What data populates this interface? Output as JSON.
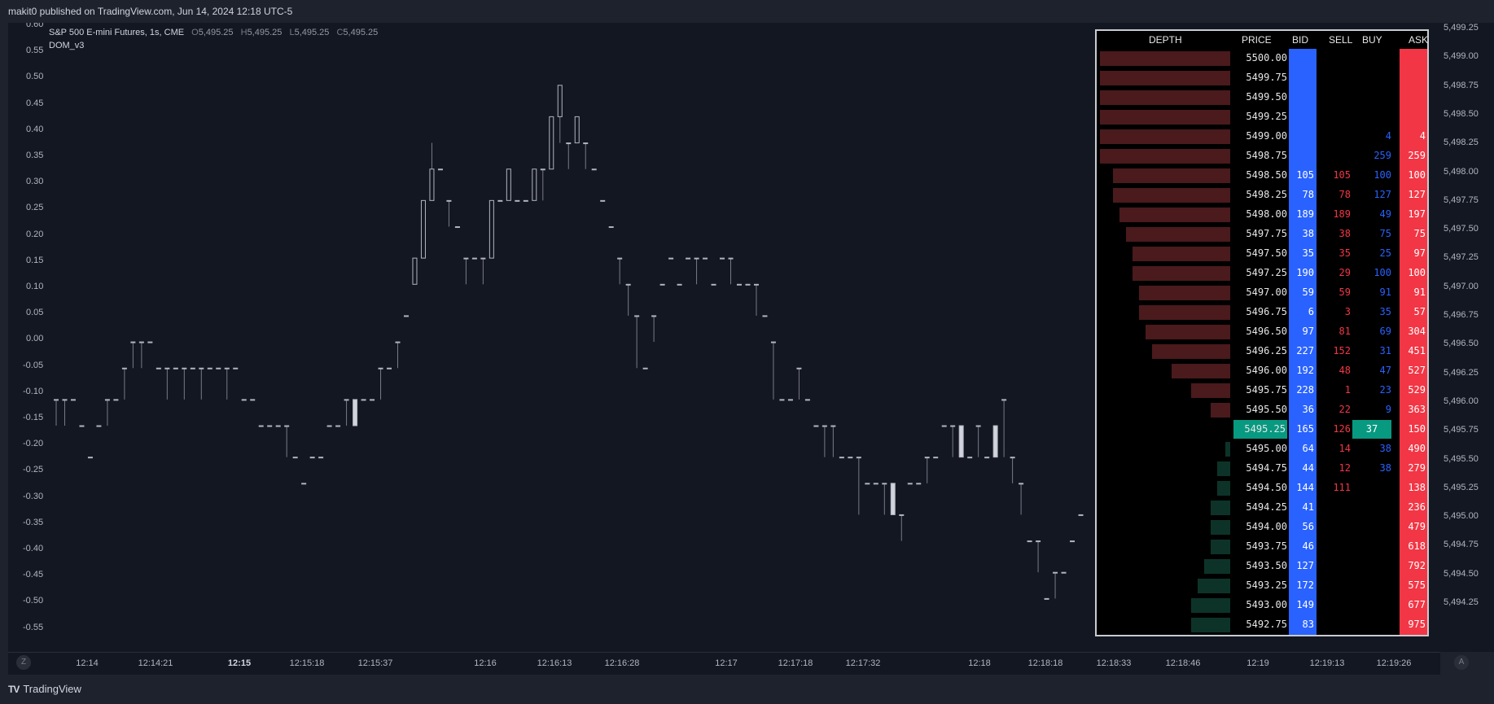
{
  "publish": {
    "text": "makit0 published on TradingView.com, Jun 14, 2024 12:18 UTC-5"
  },
  "legend": {
    "symbol": "S&P 500 E-mini Futures, 1s, CME",
    "o_label": "O",
    "o": "5,495.25",
    "h_label": "H",
    "h": "5,495.25",
    "l_label": "L",
    "l": "5,495.25",
    "c_label": "C",
    "c": "5,495.25",
    "indicator": "DOM_v3"
  },
  "left_axis": [
    "0.60",
    "0.55",
    "0.50",
    "0.45",
    "0.40",
    "0.35",
    "0.30",
    "0.25",
    "0.20",
    "0.15",
    "0.10",
    "0.05",
    "0.00",
    "-0.05",
    "-0.10",
    "-0.15",
    "-0.20",
    "-0.25",
    "-0.30",
    "-0.35",
    "-0.40",
    "-0.45",
    "-0.50",
    "-0.55"
  ],
  "right_axis": [
    "5,499.25",
    "5,499.00",
    "5,498.75",
    "5,498.50",
    "5,498.25",
    "5,498.00",
    "5,497.75",
    "5,497.50",
    "5,497.25",
    "5,497.00",
    "5,496.75",
    "5,496.50",
    "5,496.25",
    "5,496.00",
    "5,495.75",
    "5,495.50",
    "5,495.25",
    "5,495.00",
    "5,494.75",
    "5,494.50",
    "5,494.25"
  ],
  "time_axis": [
    {
      "label": "12:14",
      "bold": false
    },
    {
      "label": "12:14:21",
      "bold": false
    },
    {
      "label": "12:15",
      "bold": true
    },
    {
      "label": "12:15:18",
      "bold": false
    },
    {
      "label": "12:15:37",
      "bold": false
    },
    {
      "label": "12:16",
      "bold": false
    },
    {
      "label": "12:16:13",
      "bold": false
    },
    {
      "label": "12:16:28",
      "bold": false
    },
    {
      "label": "12:17",
      "bold": false
    },
    {
      "label": "12:17:18",
      "bold": false
    },
    {
      "label": "12:17:32",
      "bold": false
    },
    {
      "label": "12:18",
      "bold": false
    },
    {
      "label": "12:18:18",
      "bold": false
    },
    {
      "label": "12:18:33",
      "bold": false
    },
    {
      "label": "12:18:46",
      "bold": false
    },
    {
      "label": "12:19",
      "bold": false
    },
    {
      "label": "12:19:13",
      "bold": false
    },
    {
      "label": "12:19:26",
      "bold": false
    }
  ],
  "buttons": {
    "z": "Z",
    "a": "A"
  },
  "brand": {
    "logo_mark": "TV",
    "name": "TradingView"
  },
  "dom": {
    "headers": {
      "depth": "DEPTH",
      "price": "PRICE",
      "bid": "BID",
      "sell": "SELL",
      "buy": "BUY",
      "ask": "ASK"
    },
    "colors": {
      "bid": "#2962ff",
      "ask": "#f23645",
      "current": "#089981",
      "depth_ask": "#4a1a1c",
      "depth_bid": "#0d3329"
    },
    "rows": [
      {
        "price": "5500.00",
        "bid": "",
        "sell": "",
        "buy": "",
        "ask": "",
        "depth": 1.0,
        "side": "ask"
      },
      {
        "price": "5499.75",
        "bid": "",
        "sell": "",
        "buy": "",
        "ask": "",
        "depth": 1.0,
        "side": "ask"
      },
      {
        "price": "5499.50",
        "bid": "",
        "sell": "",
        "buy": "",
        "ask": "",
        "depth": 1.0,
        "side": "ask"
      },
      {
        "price": "5499.25",
        "bid": "",
        "sell": "",
        "buy": "",
        "ask": "",
        "depth": 1.0,
        "side": "ask"
      },
      {
        "price": "5499.00",
        "bid": "",
        "sell": "",
        "buy": "4",
        "ask": "4",
        "depth": 1.0,
        "side": "ask"
      },
      {
        "price": "5498.75",
        "bid": "",
        "sell": "",
        "buy": "259",
        "ask": "259",
        "depth": 1.0,
        "side": "ask"
      },
      {
        "price": "5498.50",
        "bid": "105",
        "sell": "105",
        "buy": "100",
        "ask": "100",
        "depth": 0.9,
        "side": "ask"
      },
      {
        "price": "5498.25",
        "bid": "78",
        "sell": "78",
        "buy": "127",
        "ask": "127",
        "depth": 0.9,
        "side": "ask"
      },
      {
        "price": "5498.00",
        "bid": "189",
        "sell": "189",
        "buy": "49",
        "ask": "197",
        "depth": 0.85,
        "side": "ask"
      },
      {
        "price": "5497.75",
        "bid": "38",
        "sell": "38",
        "buy": "75",
        "ask": "75",
        "depth": 0.8,
        "side": "ask"
      },
      {
        "price": "5497.50",
        "bid": "35",
        "sell": "35",
        "buy": "25",
        "ask": "97",
        "depth": 0.75,
        "side": "ask"
      },
      {
        "price": "5497.25",
        "bid": "190",
        "sell": "29",
        "buy": "100",
        "ask": "100",
        "depth": 0.75,
        "side": "ask"
      },
      {
        "price": "5497.00",
        "bid": "59",
        "sell": "59",
        "buy": "91",
        "ask": "91",
        "depth": 0.7,
        "side": "ask"
      },
      {
        "price": "5496.75",
        "bid": "6",
        "sell": "3",
        "buy": "35",
        "ask": "57",
        "depth": 0.7,
        "side": "ask"
      },
      {
        "price": "5496.50",
        "bid": "97",
        "sell": "81",
        "buy": "69",
        "ask": "304",
        "depth": 0.65,
        "side": "ask"
      },
      {
        "price": "5496.25",
        "bid": "227",
        "sell": "152",
        "buy": "31",
        "ask": "451",
        "depth": 0.6,
        "side": "ask"
      },
      {
        "price": "5496.00",
        "bid": "192",
        "sell": "48",
        "buy": "47",
        "ask": "527",
        "depth": 0.45,
        "side": "ask"
      },
      {
        "price": "5495.75",
        "bid": "228",
        "sell": "1",
        "buy": "23",
        "ask": "529",
        "depth": 0.3,
        "side": "ask"
      },
      {
        "price": "5495.50",
        "bid": "36",
        "sell": "22",
        "buy": "9",
        "ask": "363",
        "depth": 0.15,
        "side": "ask"
      },
      {
        "price": "5495.25",
        "bid": "165",
        "sell": "126",
        "buy": "37",
        "ask": "150",
        "depth": 0,
        "side": "current"
      },
      {
        "price": "5495.00",
        "bid": "64",
        "sell": "14",
        "buy": "38",
        "ask": "490",
        "depth": 0.04,
        "side": "bid"
      },
      {
        "price": "5494.75",
        "bid": "44",
        "sell": "12",
        "buy": "38",
        "ask": "279",
        "depth": 0.1,
        "side": "bid"
      },
      {
        "price": "5494.50",
        "bid": "144",
        "sell": "111",
        "buy": "",
        "ask": "138",
        "depth": 0.1,
        "side": "bid"
      },
      {
        "price": "5494.25",
        "bid": "41",
        "sell": "",
        "buy": "",
        "ask": "236",
        "depth": 0.15,
        "side": "bid"
      },
      {
        "price": "5494.00",
        "bid": "56",
        "sell": "",
        "buy": "",
        "ask": "479",
        "depth": 0.15,
        "side": "bid"
      },
      {
        "price": "5493.75",
        "bid": "46",
        "sell": "",
        "buy": "",
        "ask": "618",
        "depth": 0.15,
        "side": "bid"
      },
      {
        "price": "5493.50",
        "bid": "127",
        "sell": "",
        "buy": "",
        "ask": "792",
        "depth": 0.2,
        "side": "bid"
      },
      {
        "price": "5493.25",
        "bid": "172",
        "sell": "",
        "buy": "",
        "ask": "575",
        "depth": 0.25,
        "side": "bid"
      },
      {
        "price": "5493.00",
        "bid": "149",
        "sell": "",
        "buy": "",
        "ask": "677",
        "depth": 0.3,
        "side": "bid"
      },
      {
        "price": "5492.75",
        "bid": "83",
        "sell": "",
        "buy": "",
        "ask": "975",
        "depth": 0.3,
        "side": "bid"
      }
    ]
  },
  "price_candles": [
    [
      -0.11,
      -0.16,
      -0.16,
      -0.11
    ],
    [
      -0.11,
      -0.16,
      -0.16,
      -0.11
    ],
    [
      -0.11,
      -0.11,
      -0.11,
      -0.11
    ],
    [
      -0.16,
      -0.16,
      -0.16,
      -0.16
    ],
    [
      -0.22,
      -0.22,
      -0.22,
      -0.22
    ],
    [
      -0.16,
      -0.16,
      -0.16,
      -0.16
    ],
    [
      -0.11,
      -0.16,
      -0.16,
      -0.11
    ],
    [
      -0.11,
      -0.11,
      -0.11,
      -0.11
    ],
    [
      -0.05,
      -0.11,
      -0.11,
      -0.05
    ],
    [
      0.0,
      -0.05,
      -0.05,
      0.0
    ],
    [
      0.0,
      -0.05,
      -0.05,
      0.0
    ],
    [
      0.0,
      0.0,
      0.0,
      0.0
    ],
    [
      -0.05,
      -0.05,
      -0.05,
      -0.05
    ],
    [
      -0.05,
      -0.11,
      -0.11,
      -0.05
    ],
    [
      -0.05,
      -0.05,
      -0.05,
      -0.05
    ],
    [
      -0.05,
      -0.11,
      -0.11,
      -0.05
    ],
    [
      -0.05,
      -0.05,
      -0.05,
      -0.05
    ],
    [
      -0.05,
      -0.11,
      -0.11,
      -0.05
    ],
    [
      -0.05,
      -0.05,
      -0.05,
      -0.05
    ],
    [
      -0.05,
      -0.05,
      -0.05,
      -0.05
    ],
    [
      -0.05,
      -0.11,
      -0.11,
      -0.05
    ],
    [
      -0.05,
      -0.05,
      -0.05,
      -0.05
    ],
    [
      -0.11,
      -0.11,
      -0.11,
      -0.11
    ],
    [
      -0.11,
      -0.11,
      -0.11,
      -0.11
    ],
    [
      -0.16,
      -0.16,
      -0.16,
      -0.16
    ],
    [
      -0.16,
      -0.16,
      -0.16,
      -0.16
    ],
    [
      -0.16,
      -0.16,
      -0.16,
      -0.16
    ],
    [
      -0.16,
      -0.22,
      -0.22,
      -0.16
    ],
    [
      -0.22,
      -0.22,
      -0.22,
      -0.22
    ],
    [
      -0.27,
      -0.27,
      -0.27,
      -0.27
    ],
    [
      -0.22,
      -0.22,
      -0.22,
      -0.22
    ],
    [
      -0.22,
      -0.22,
      -0.22,
      -0.22
    ],
    [
      -0.16,
      -0.16,
      -0.16,
      -0.16
    ],
    [
      -0.16,
      -0.16,
      -0.16,
      -0.16
    ],
    [
      -0.11,
      -0.16,
      -0.16,
      -0.11
    ],
    [
      -0.11,
      -0.16,
      -0.11,
      -0.16
    ],
    [
      -0.11,
      -0.11,
      -0.11,
      -0.11
    ],
    [
      -0.11,
      -0.11,
      -0.11,
      -0.11
    ],
    [
      -0.05,
      -0.11,
      -0.11,
      -0.05
    ],
    [
      -0.05,
      -0.05,
      -0.05,
      -0.05
    ],
    [
      0.0,
      -0.05,
      -0.05,
      0.0
    ],
    [
      0.05,
      0.05,
      0.05,
      0.05
    ],
    [
      0.11,
      0.16,
      0.11,
      0.16
    ],
    [
      0.16,
      0.27,
      0.16,
      0.27
    ],
    [
      0.27,
      0.38,
      0.27,
      0.33
    ],
    [
      0.33,
      0.33,
      0.33,
      0.33
    ],
    [
      0.27,
      0.22,
      0.22,
      0.27
    ],
    [
      0.22,
      0.22,
      0.22,
      0.22
    ],
    [
      0.16,
      0.11,
      0.11,
      0.16
    ],
    [
      0.16,
      0.16,
      0.16,
      0.16
    ],
    [
      0.16,
      0.11,
      0.11,
      0.16
    ],
    [
      0.16,
      0.27,
      0.16,
      0.27
    ],
    [
      0.27,
      0.27,
      0.27,
      0.27
    ],
    [
      0.27,
      0.33,
      0.27,
      0.33
    ],
    [
      0.27,
      0.27,
      0.27,
      0.27
    ],
    [
      0.27,
      0.27,
      0.27,
      0.27
    ],
    [
      0.27,
      0.33,
      0.27,
      0.33
    ],
    [
      0.33,
      0.27,
      0.27,
      0.33
    ],
    [
      0.33,
      0.43,
      0.33,
      0.43
    ],
    [
      0.43,
      0.49,
      0.38,
      0.49
    ],
    [
      0.38,
      0.33,
      0.33,
      0.38
    ],
    [
      0.38,
      0.43,
      0.38,
      0.43
    ],
    [
      0.38,
      0.33,
      0.33,
      0.38
    ],
    [
      0.33,
      0.33,
      0.33,
      0.33
    ],
    [
      0.27,
      0.27,
      0.27,
      0.27
    ],
    [
      0.22,
      0.22,
      0.22,
      0.22
    ],
    [
      0.16,
      0.11,
      0.11,
      0.16
    ],
    [
      0.11,
      0.05,
      0.05,
      0.11
    ],
    [
      0.05,
      -0.05,
      -0.05,
      0.05
    ],
    [
      -0.05,
      -0.05,
      -0.05,
      -0.05
    ],
    [
      0.05,
      0.0,
      0.0,
      0.05
    ],
    [
      0.11,
      0.11,
      0.11,
      0.11
    ],
    [
      0.16,
      0.16,
      0.16,
      0.16
    ],
    [
      0.11,
      0.11,
      0.11,
      0.11
    ],
    [
      0.16,
      0.16,
      0.16,
      0.16
    ],
    [
      0.16,
      0.11,
      0.11,
      0.16
    ],
    [
      0.16,
      0.16,
      0.16,
      0.16
    ],
    [
      0.11,
      0.11,
      0.11,
      0.11
    ],
    [
      0.16,
      0.16,
      0.16,
      0.16
    ],
    [
      0.16,
      0.11,
      0.11,
      0.16
    ],
    [
      0.11,
      0.11,
      0.11,
      0.11
    ],
    [
      0.11,
      0.11,
      0.11,
      0.11
    ],
    [
      0.11,
      0.05,
      0.05,
      0.11
    ],
    [
      0.05,
      0.05,
      0.05,
      0.05
    ],
    [
      0.0,
      -0.11,
      -0.11,
      0.0
    ],
    [
      -0.11,
      -0.11,
      -0.11,
      -0.11
    ],
    [
      -0.11,
      -0.11,
      -0.11,
      -0.11
    ],
    [
      -0.05,
      -0.11,
      -0.11,
      -0.05
    ],
    [
      -0.11,
      -0.11,
      -0.11,
      -0.11
    ],
    [
      -0.16,
      -0.16,
      -0.16,
      -0.16
    ],
    [
      -0.16,
      -0.22,
      -0.22,
      -0.16
    ],
    [
      -0.16,
      -0.22,
      -0.22,
      -0.16
    ],
    [
      -0.22,
      -0.22,
      -0.22,
      -0.22
    ],
    [
      -0.22,
      -0.22,
      -0.22,
      -0.22
    ],
    [
      -0.22,
      -0.33,
      -0.33,
      -0.22
    ],
    [
      -0.27,
      -0.27,
      -0.27,
      -0.27
    ],
    [
      -0.27,
      -0.27,
      -0.27,
      -0.27
    ],
    [
      -0.27,
      -0.33,
      -0.33,
      -0.27
    ],
    [
      -0.27,
      -0.33,
      -0.27,
      -0.33
    ],
    [
      -0.33,
      -0.38,
      -0.38,
      -0.33
    ],
    [
      -0.27,
      -0.27,
      -0.27,
      -0.27
    ],
    [
      -0.27,
      -0.27,
      -0.27,
      -0.27
    ],
    [
      -0.22,
      -0.27,
      -0.27,
      -0.22
    ],
    [
      -0.22,
      -0.22,
      -0.22,
      -0.22
    ],
    [
      -0.16,
      -0.16,
      -0.16,
      -0.16
    ],
    [
      -0.16,
      -0.22,
      -0.22,
      -0.16
    ],
    [
      -0.16,
      -0.22,
      -0.16,
      -0.22
    ],
    [
      -0.22,
      -0.22,
      -0.22,
      -0.22
    ],
    [
      -0.16,
      -0.22,
      -0.22,
      -0.16
    ],
    [
      -0.22,
      -0.22,
      -0.22,
      -0.22
    ],
    [
      -0.16,
      -0.22,
      -0.16,
      -0.22
    ],
    [
      -0.11,
      -0.22,
      -0.22,
      -0.11
    ],
    [
      -0.22,
      -0.27,
      -0.27,
      -0.22
    ],
    [
      -0.27,
      -0.33,
      -0.33,
      -0.27
    ],
    [
      -0.38,
      -0.38,
      -0.38,
      -0.38
    ],
    [
      -0.38,
      -0.44,
      -0.44,
      -0.38
    ],
    [
      -0.49,
      -0.49,
      -0.49,
      -0.49
    ],
    [
      -0.44,
      -0.49,
      -0.49,
      -0.44
    ],
    [
      -0.44,
      -0.44,
      -0.44,
      -0.44
    ],
    [
      -0.38,
      -0.38,
      -0.38,
      -0.38
    ],
    [
      -0.33,
      -0.33,
      -0.33,
      -0.33
    ]
  ]
}
